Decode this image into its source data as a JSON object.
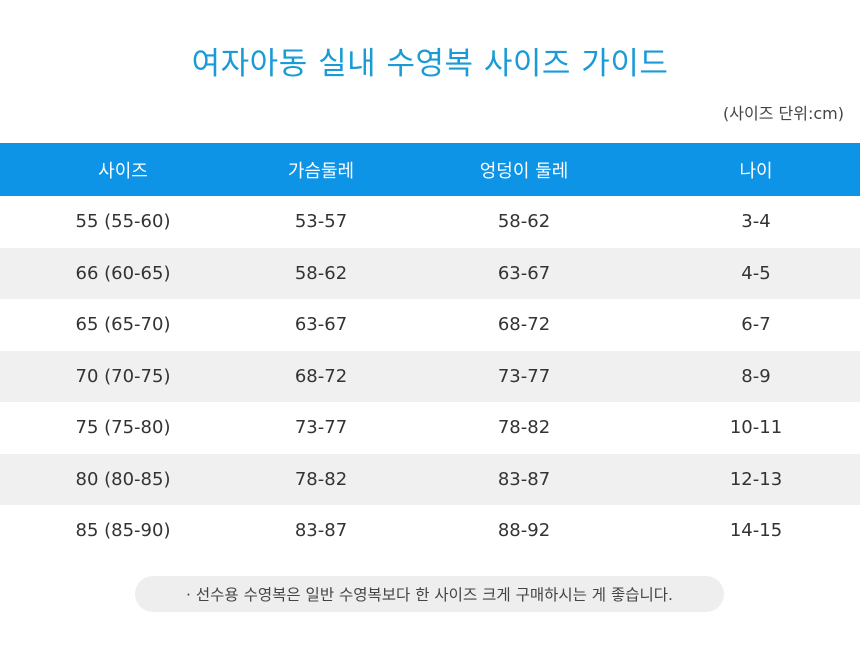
{
  "title": "여자아동 실내 수영복 사이즈  가이드",
  "unit": "(사이즈 단위:cm)",
  "table": {
    "headers": [
      "사이즈",
      "가슴둘레",
      "엉덩이 둘레",
      "나이"
    ],
    "rows": [
      [
        "55 (55-60)",
        "53-57",
        "58-62",
        "3-4"
      ],
      [
        "66 (60-65)",
        "58-62",
        "63-67",
        "4-5"
      ],
      [
        "65 (65-70)",
        "63-67",
        "68-72",
        "6-7"
      ],
      [
        "70 (70-75)",
        "68-72",
        "73-77",
        "8-9"
      ],
      [
        "75 (75-80)",
        "73-77",
        "78-82",
        "10-11"
      ],
      [
        "80 (80-85)",
        "78-82",
        "83-87",
        "12-13"
      ],
      [
        "85 (85-90)",
        "83-87",
        "88-92",
        "14-15"
      ]
    ]
  },
  "note": "· 선수용 수영복은 일반 수영복보다 한 사이즈 크게 구매하시는 게 좋습니다.",
  "colors": {
    "title": "#1a9bd7",
    "header_bg": "#0d94e6",
    "alt_row_bg": "#f0f0f0"
  }
}
